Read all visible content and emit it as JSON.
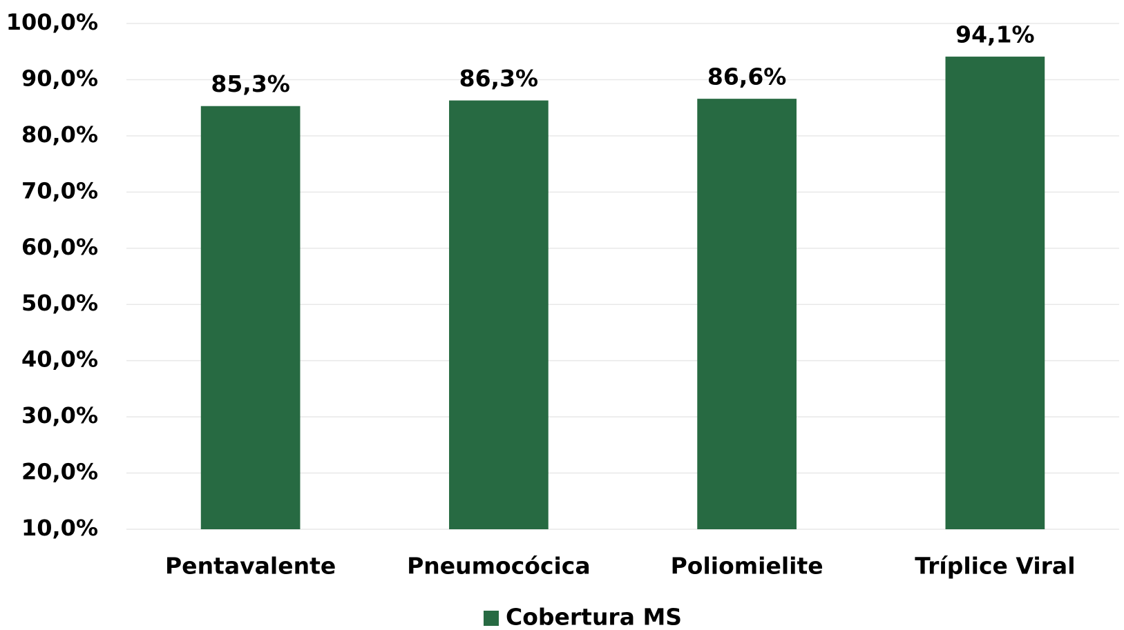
{
  "chart_data": {
    "type": "bar",
    "categories": [
      "Pentavalente",
      "Pneumocócica",
      "Poliomielite",
      "Tríplice Viral"
    ],
    "values": [
      85.3,
      86.3,
      86.6,
      94.1
    ],
    "value_labels": [
      "85,3%",
      "86,3%",
      "86,6%",
      "94,1%"
    ],
    "color": "#276a42",
    "series_name": "Cobertura MS",
    "ylim": [
      10,
      100
    ],
    "yticks": [
      {
        "value": 10,
        "label": "10,0%"
      },
      {
        "value": 20,
        "label": "20,0%"
      },
      {
        "value": 30,
        "label": "30,0%"
      },
      {
        "value": 40,
        "label": "40,0%"
      },
      {
        "value": 50,
        "label": "50,0%"
      },
      {
        "value": 60,
        "label": "60,0%"
      },
      {
        "value": 70,
        "label": "70,0%"
      },
      {
        "value": 80,
        "label": "80,0%"
      },
      {
        "value": 90,
        "label": "90,0%"
      },
      {
        "value": 100,
        "label": "100,0%"
      }
    ],
    "grid": true
  }
}
